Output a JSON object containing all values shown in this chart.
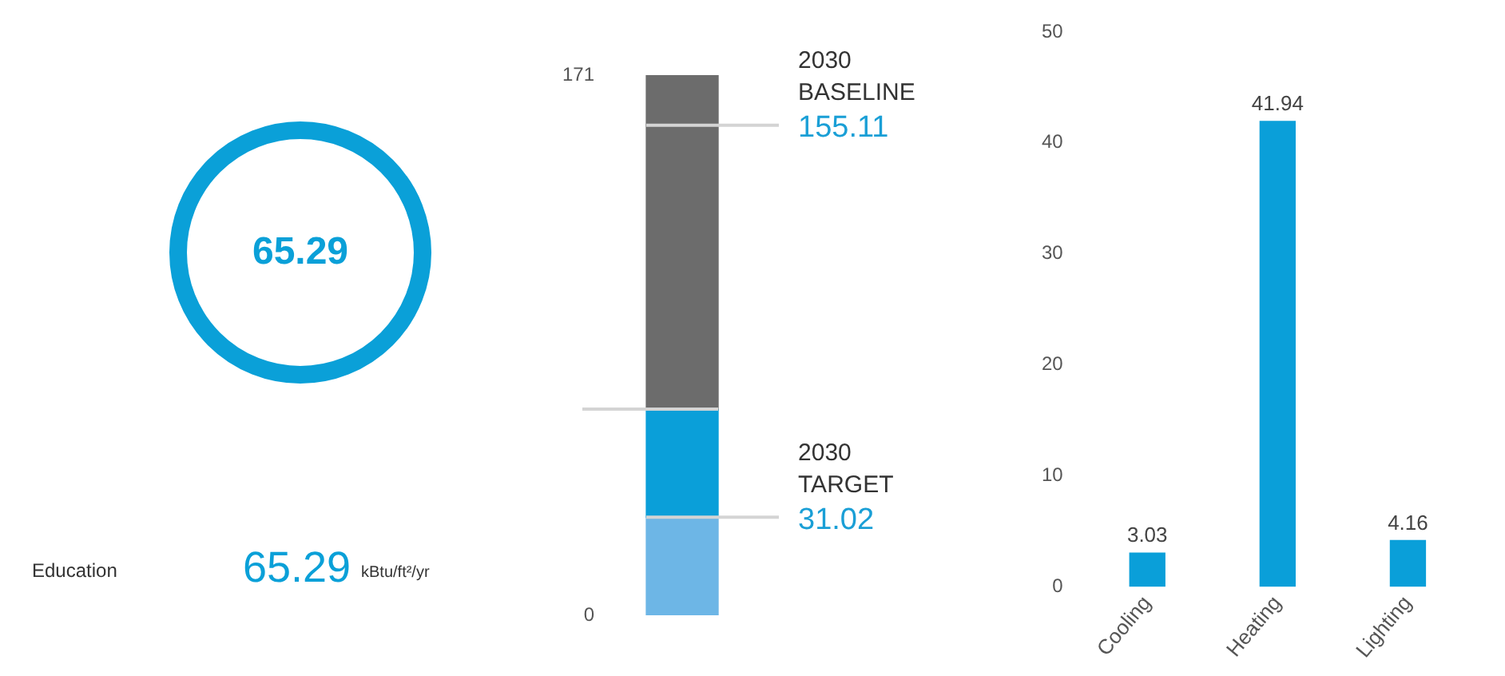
{
  "chart_data": [
    {
      "type": "other",
      "color": "#0aa0d8",
      "annotations": [
        "65.29",
        "Education",
        "65.29",
        "kBtu/ft²/yr"
      ]
    },
    {
      "type": "bar",
      "stacked": true,
      "categories": [
        null
      ],
      "ylim": [
        0,
        171
      ],
      "yticks": [
        0,
        171
      ],
      "tick_labels": "y",
      "grid": false,
      "series": [
        {
          "color": "#6db6e6",
          "values": [
            31
          ]
        },
        {
          "color": "#0a9fd9",
          "values": [
            34
          ]
        },
        {
          "color": "#6c6c6c",
          "values": [
            106
          ]
        }
      ],
      "ref_lines": [
        {
          "axis": "y",
          "value": 155.11,
          "label": "2030 BASELINE",
          "color": "#d4d4d4"
        },
        {
          "axis": "y",
          "value": 65.29,
          "label": null,
          "color": "#d4d4d4"
        },
        {
          "axis": "y",
          "value": 31.02,
          "label": "2030 TARGET",
          "color": "#d4d4d4"
        }
      ],
      "annotations": [
        "155.11",
        "31.02"
      ]
    },
    {
      "type": "bar",
      "categories": [
        "Cooling",
        "Heating",
        "Lighting"
      ],
      "values": [
        3.03,
        41.94,
        4.16
      ],
      "color": "#0a9fd9",
      "ylim": [
        0,
        50
      ],
      "yticks": [
        0,
        10,
        20,
        30,
        40,
        50
      ],
      "grid": false,
      "data_labels": true
    }
  ]
}
